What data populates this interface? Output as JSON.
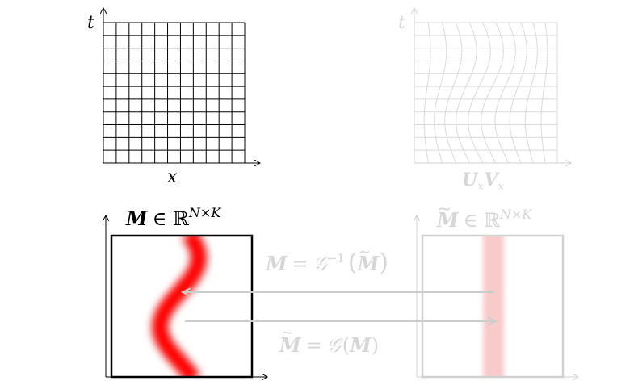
{
  "top_left_panel": {
    "y_axis_label": "t",
    "x_axis_label": "x"
  },
  "top_right_panel": {
    "y_axis_label": "t",
    "x_axis_label": "U_x V_x",
    "x_axis_label_parts": [
      "U",
      "x",
      "V",
      "x"
    ]
  },
  "bottom_left_panel": {
    "title_symbol": "M",
    "title_rel": "∈ ℝ",
    "title_sup": "N×K"
  },
  "bottom_right_panel": {
    "title_symbol": "M",
    "title_rel": "∈ ℝ",
    "title_sup": "N×K"
  },
  "arrows": {
    "inverse_label_lhs": "M",
    "inverse_label_eq": "=",
    "inverse_label_fn": "𝒢",
    "inverse_label_sup": "−1",
    "inverse_label_arg": "M",
    "forward_label_lhs": "M",
    "forward_label_eq": "=",
    "forward_label_fn": "𝒢",
    "forward_label_arg": "M"
  },
  "colors": {
    "grid_dark": "#000000",
    "grid_faded": "#d9d9d9",
    "signal_red": "#ff0000",
    "signal_faded": "#f8c4c4",
    "arrow_gray": "#cccccc",
    "text_faded": "#d6d6d6"
  }
}
